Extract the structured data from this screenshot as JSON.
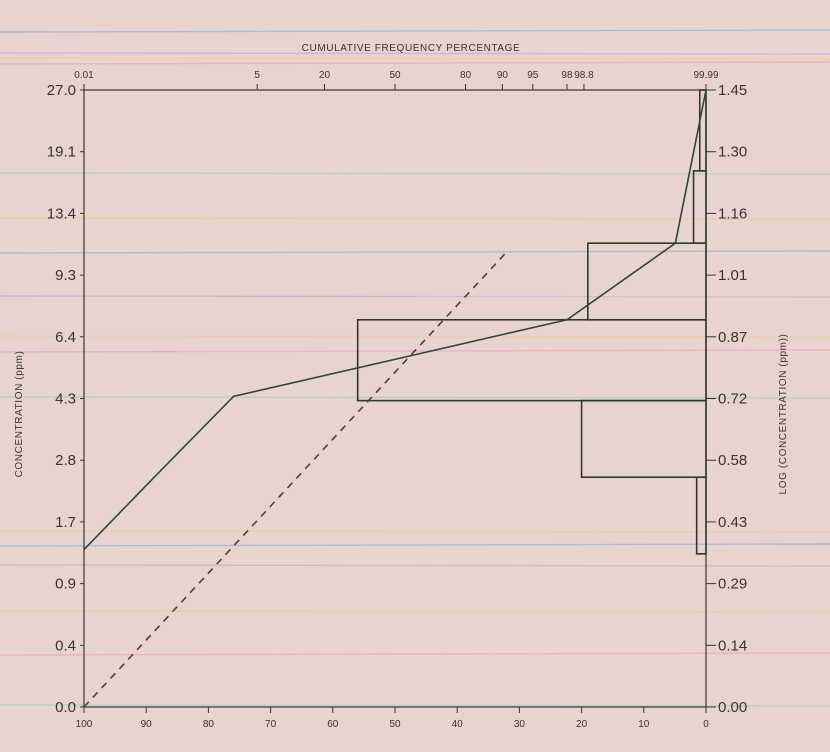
{
  "colors": {
    "paper": "#e8d3cf",
    "ink": "#3a3430",
    "curve": "#34463a",
    "hist_edge": "#2e3a30",
    "dashed": "#5a3a34",
    "ruling_lines": [
      "#7fa8d8",
      "#c9a0d0",
      "#e6d28a",
      "#e8a0a8",
      "#9fc6c6",
      "#e6d27a"
    ]
  },
  "chart_data": {
    "type": "line",
    "title": "CUMULATIVE FREQUENCY PERCENTAGE",
    "ylabel_left": "CONCENTRATION (ppm)",
    "ylabel_right": "LOG (CONCENTRATION (ppm))",
    "y_left_ticks": [
      "27.0",
      "19.1",
      "13.4",
      "9.3",
      "6.4",
      "4.3",
      "2.8",
      "1.7",
      "0.9",
      "0.4",
      "0.0"
    ],
    "y_right_ticks": [
      "1.45",
      "1.30",
      "1.16",
      "1.01",
      "0.87",
      "0.72",
      "0.58",
      "0.43",
      "0.29",
      "0.14",
      "0.00"
    ],
    "y_range_log": [
      0.0,
      1.45
    ],
    "x_top_ticks": [
      "0.01",
      "5",
      "20",
      "50",
      "80",
      "90",
      "95",
      "98",
      "98.8",
      "99.99"
    ],
    "x_top_tick_probabilities": [
      0.01,
      5,
      20,
      50,
      80,
      90,
      95,
      98,
      98.8,
      99.99
    ],
    "x_bottom_ticks": [
      "100",
      "90",
      "80",
      "70",
      "60",
      "50",
      "40",
      "30",
      "20",
      "10",
      "0"
    ],
    "x_bottom_range": [
      100,
      0
    ],
    "series": [
      {
        "kind": "cumulative-probability",
        "style": "solid",
        "x_probability_percent": [
          0.01,
          0.2,
          2.7,
          98,
          99.96,
          99.99
        ],
        "y_log_concentration": [
          0.37,
          0.54,
          0.73,
          0.91,
          1.09,
          1.45
        ]
      },
      {
        "kind": "normal-reference",
        "style": "dashed",
        "x_bottom": [
          100,
          32
        ],
        "y_log_concentration": [
          0.0,
          1.07
        ]
      }
    ],
    "histogram": {
      "orientation": "horizontal",
      "bins": [
        {
          "y_low": 0.36,
          "y_high": 0.54,
          "value": 1.5
        },
        {
          "y_low": 0.54,
          "y_high": 0.72,
          "value": 20
        },
        {
          "y_low": 0.72,
          "y_high": 0.91,
          "value": 56
        },
        {
          "y_low": 0.91,
          "y_high": 1.09,
          "value": 19
        },
        {
          "y_low": 1.09,
          "y_high": 1.26,
          "value": 2
        },
        {
          "y_low": 1.26,
          "y_high": 1.45,
          "value": 1
        }
      ]
    },
    "grid": false,
    "legend": "none"
  }
}
